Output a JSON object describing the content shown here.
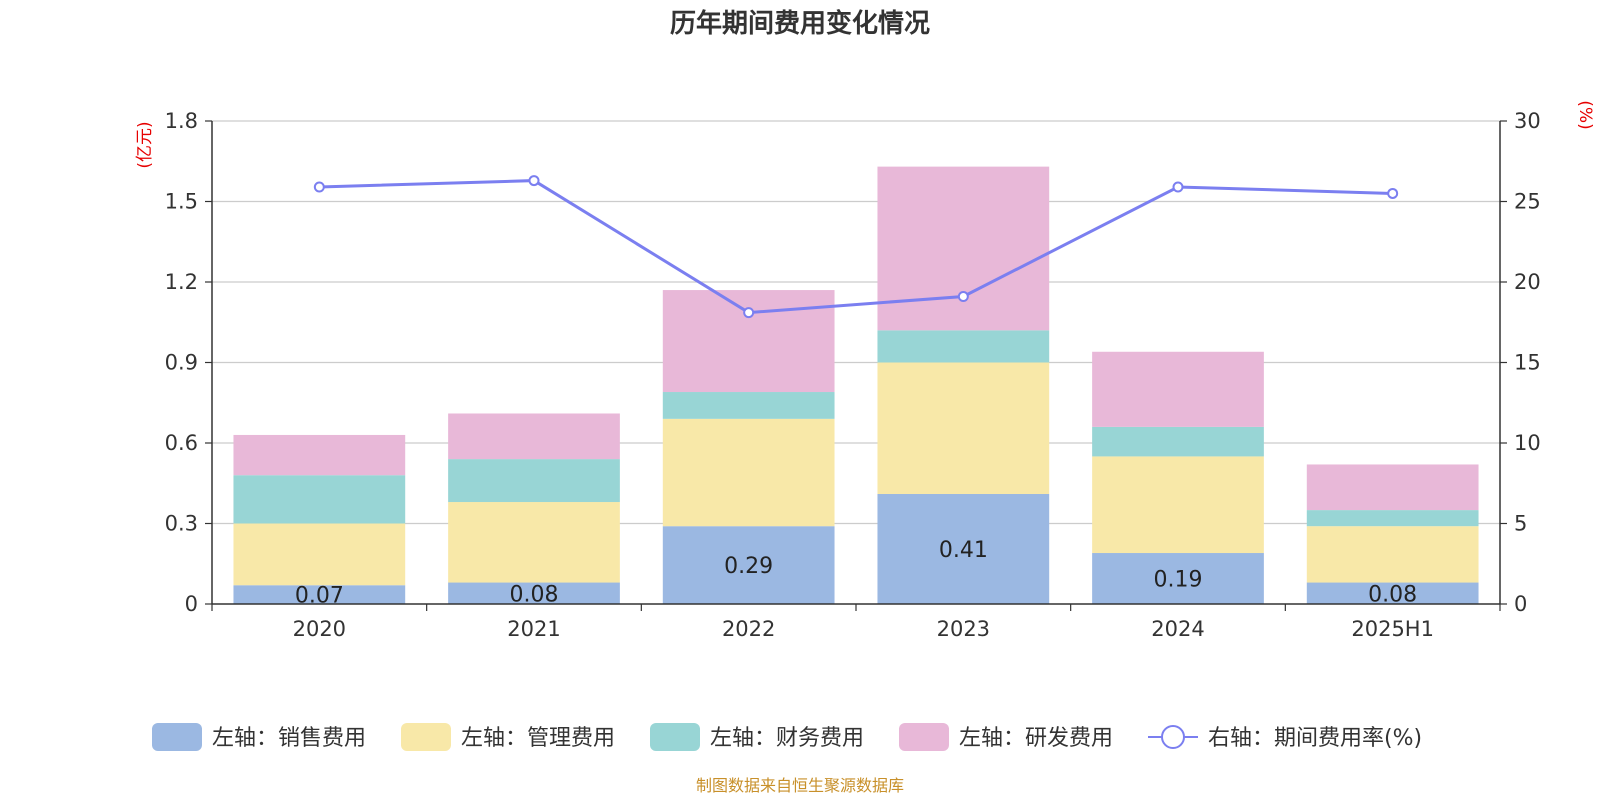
{
  "chart_data": {
    "type": "bar",
    "title": "历年期间费用变化情况",
    "categories": [
      "2020",
      "2021",
      "2022",
      "2023",
      "2024",
      "2025H1"
    ],
    "y_left": {
      "unit_label": "(亿元)",
      "ylim": [
        0,
        1.8
      ],
      "ticks": [
        "0",
        "0.3",
        "0.6",
        "0.9",
        "1.2",
        "1.5",
        "1.8"
      ]
    },
    "y_right": {
      "unit_label": "(%)",
      "ylim": [
        0,
        30
      ],
      "ticks": [
        "0",
        "5",
        "10",
        "15",
        "20",
        "25",
        "30"
      ]
    },
    "series": [
      {
        "name": "左轴：销售费用",
        "type": "bar",
        "axis": "left",
        "color": "#9bb8e2",
        "values": [
          0.07,
          0.08,
          0.29,
          0.41,
          0.19,
          0.08
        ],
        "data_labels": [
          "0.07",
          "0.08",
          "0.29",
          "0.41",
          "0.19",
          "0.08"
        ]
      },
      {
        "name": "左轴：管理费用",
        "type": "bar",
        "axis": "left",
        "color": "#f8e8a8",
        "values": [
          0.23,
          0.3,
          0.4,
          0.49,
          0.36,
          0.21
        ]
      },
      {
        "name": "左轴：财务费用",
        "type": "bar",
        "axis": "left",
        "color": "#98d5d5",
        "values": [
          0.18,
          0.16,
          0.1,
          0.12,
          0.11,
          0.06
        ]
      },
      {
        "name": "左轴：研发费用",
        "type": "bar",
        "axis": "left",
        "color": "#e8b8d8",
        "values": [
          0.15,
          0.17,
          0.38,
          0.61,
          0.28,
          0.17
        ]
      },
      {
        "name": "右轴：期间费用率(%)",
        "type": "line",
        "axis": "right",
        "color": "#7b7ff0",
        "values": [
          25.9,
          26.3,
          18.1,
          19.1,
          25.9,
          25.5
        ]
      }
    ],
    "grid": true,
    "legend_position": "bottom",
    "source": "制图数据来自恒生聚源数据库"
  }
}
